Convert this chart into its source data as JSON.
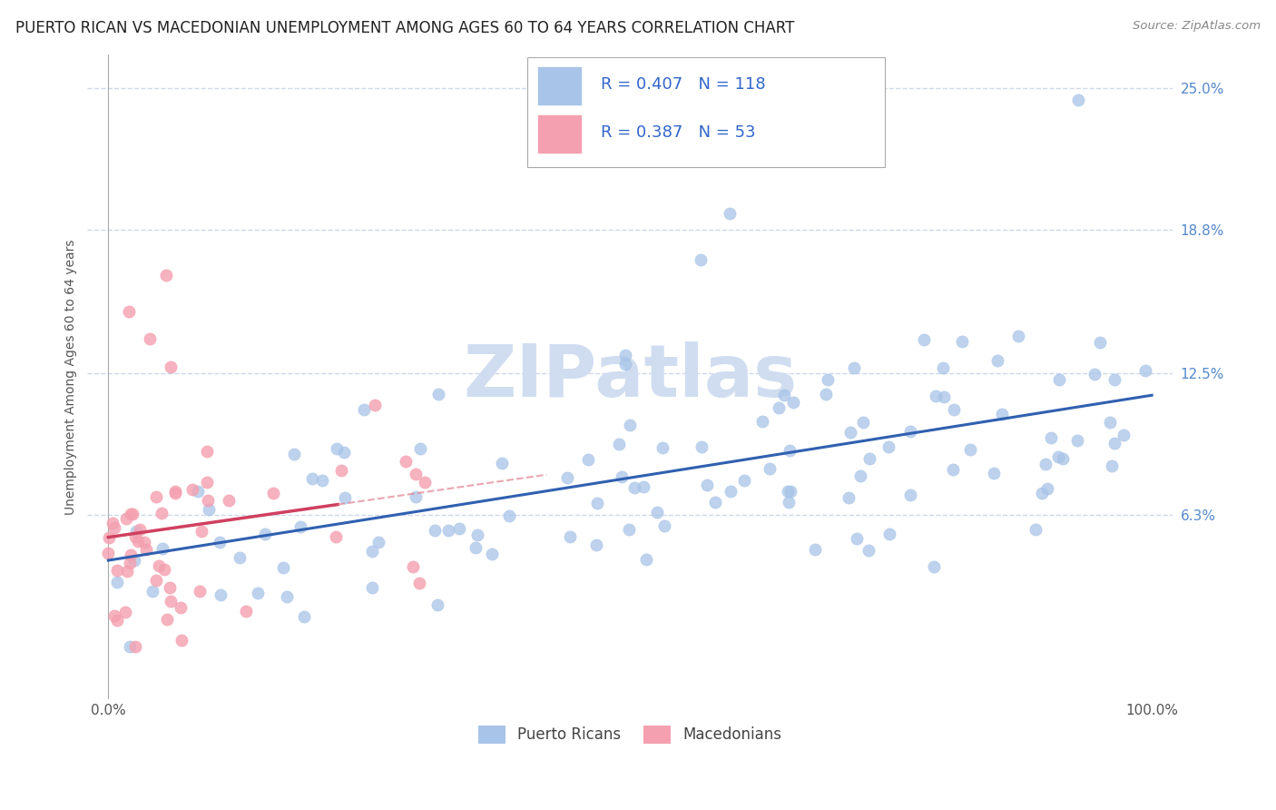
{
  "title": "PUERTO RICAN VS MACEDONIAN UNEMPLOYMENT AMONG AGES 60 TO 64 YEARS CORRELATION CHART",
  "source": "Source: ZipAtlas.com",
  "ylabel": "Unemployment Among Ages 60 to 64 years",
  "pr_color": "#a8c4e8",
  "mac_color": "#f4a0b0",
  "pr_line_color": "#3060b0",
  "mac_line_color": "#d04060",
  "mac_dash_color": "#e08090",
  "pr_R": 0.407,
  "pr_N": 118,
  "mac_R": 0.387,
  "mac_N": 53,
  "legend_color": "#3366cc",
  "watermark_color": "#d0ddf0",
  "background_color": "#ffffff",
  "grid_color": "#c8d4e8",
  "ytick_color": "#5588cc",
  "title_fontsize": 12,
  "label_fontsize": 10,
  "tick_fontsize": 11
}
